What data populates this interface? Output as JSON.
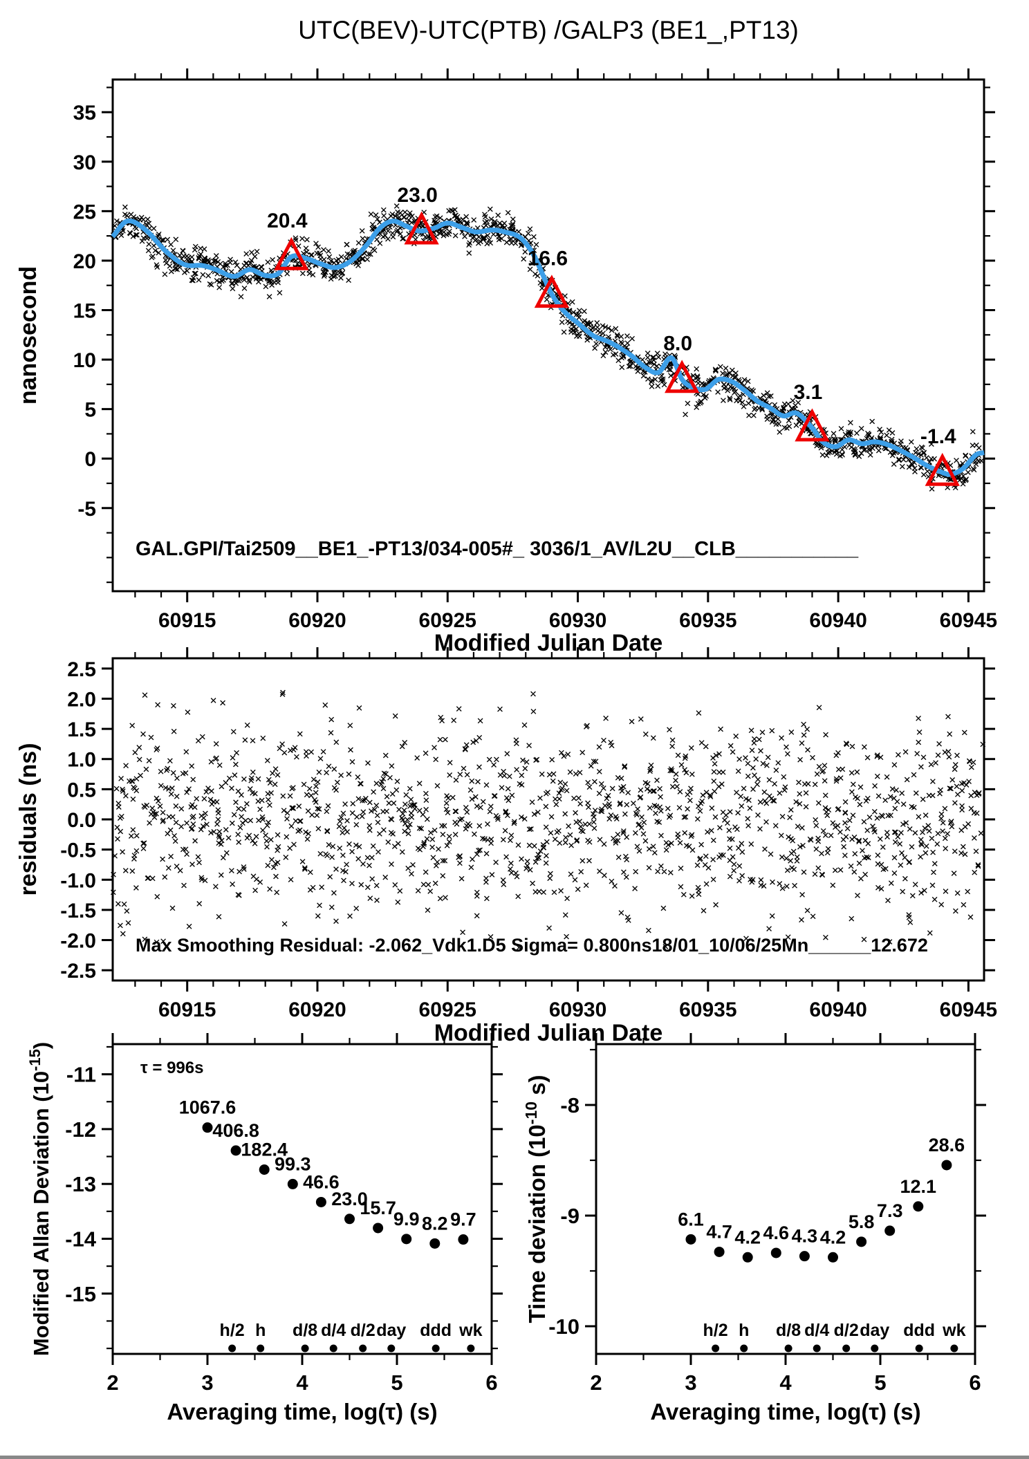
{
  "figure": {
    "background": "#ffffff"
  },
  "colors": {
    "scatter": "#000000",
    "trend": "#3d9fe8",
    "highlight": "#ee0000"
  },
  "chart_data": [
    {
      "id": "time-difference",
      "type": "scatter",
      "title": "UTC(BEV)-UTC(PTB)  /GALP3  (BE1_,PT13)",
      "xlabel": "Modified Julian Date",
      "ylabel": "nanosecond",
      "xlim": [
        60912.14,
        60945.6
      ],
      "ylim": [
        -13.4,
        38.3
      ],
      "xticks": [
        60915,
        60920,
        60925,
        60930,
        60935,
        60940,
        60945
      ],
      "yticks": [
        -5,
        0,
        5,
        10,
        15,
        20,
        25,
        30,
        35
      ],
      "annotation": "GAL.GPI/Tai2509__BE1_-PT13/034-005#_  3036/1_AV/L2U__CLB___________",
      "scatter_marker": "x",
      "scatter_style": {
        "n": 1400,
        "sigma_ns": 0.82,
        "seed": 11
      },
      "smoothed_line": [
        [
          60912.1,
          22.3
        ],
        [
          60912.7,
          24.0
        ],
        [
          60913.4,
          23.1
        ],
        [
          60914.2,
          20.9
        ],
        [
          60914.9,
          19.6
        ],
        [
          60915.6,
          19.5
        ],
        [
          60916.1,
          19.1
        ],
        [
          60916.8,
          18.4
        ],
        [
          60917.4,
          19.1
        ],
        [
          60918.0,
          18.5
        ],
        [
          60918.5,
          18.7
        ],
        [
          60919.0,
          20.4
        ],
        [
          60919.6,
          20.2
        ],
        [
          60920.1,
          19.7
        ],
        [
          60920.7,
          19.3
        ],
        [
          60921.3,
          20.0
        ],
        [
          60921.9,
          21.6
        ],
        [
          60922.4,
          23.3
        ],
        [
          60922.9,
          24.0
        ],
        [
          60923.4,
          23.5
        ],
        [
          60923.9,
          23.0
        ],
        [
          60924.5,
          23.3
        ],
        [
          60925.0,
          23.8
        ],
        [
          60925.6,
          23.3
        ],
        [
          60926.1,
          22.9
        ],
        [
          60926.7,
          23.1
        ],
        [
          60927.2,
          22.9
        ],
        [
          60927.8,
          22.3
        ],
        [
          60928.3,
          20.6
        ],
        [
          60928.7,
          18.3
        ],
        [
          60929.0,
          16.6
        ],
        [
          60929.5,
          14.8
        ],
        [
          60930.0,
          13.7
        ],
        [
          60930.6,
          12.4
        ],
        [
          60931.1,
          11.9
        ],
        [
          60931.6,
          11.2
        ],
        [
          60932.1,
          10.3
        ],
        [
          60932.6,
          9.2
        ],
        [
          60933.1,
          8.7
        ],
        [
          60933.6,
          10.2
        ],
        [
          60934.0,
          8.0
        ],
        [
          60934.4,
          7.2
        ],
        [
          60934.9,
          7.0
        ],
        [
          60935.4,
          8.0
        ],
        [
          60935.9,
          7.8
        ],
        [
          60936.4,
          6.9
        ],
        [
          60936.9,
          5.8
        ],
        [
          60937.4,
          5.1
        ],
        [
          60937.9,
          4.3
        ],
        [
          60938.4,
          4.6
        ],
        [
          60939.0,
          3.1
        ],
        [
          60939.4,
          1.7
        ],
        [
          60939.9,
          1.2
        ],
        [
          60940.4,
          1.9
        ],
        [
          60940.9,
          1.5
        ],
        [
          60941.4,
          1.7
        ],
        [
          60941.9,
          1.4
        ],
        [
          60942.4,
          0.8
        ],
        [
          60942.9,
          0.1
        ],
        [
          60943.4,
          -0.7
        ],
        [
          60943.9,
          -1.3
        ],
        [
          60944.3,
          -1.6
        ],
        [
          60944.8,
          -1.0
        ],
        [
          60945.3,
          0.4
        ],
        [
          60945.6,
          0.6
        ]
      ],
      "calibration_points": {
        "marker": "triangle",
        "mjd": [
          60919,
          60924,
          60929,
          60934,
          60939,
          60944
        ],
        "value": [
          20.4,
          23.0,
          16.6,
          8.0,
          3.1,
          -1.4
        ],
        "labels": [
          "20.4",
          "23.0",
          "16.6",
          "8.0",
          "3.1",
          "-1.4"
        ]
      }
    },
    {
      "id": "residuals",
      "type": "scatter",
      "xlabel": "Modified Julian Date",
      "ylabel": "residuals (ns)",
      "xlim": [
        60912.14,
        60945.6
      ],
      "ylim": [
        -2.67,
        2.67
      ],
      "xticks": [
        60915,
        60920,
        60925,
        60930,
        60935,
        60940,
        60945
      ],
      "yticks": [
        -2.5,
        -2.0,
        -1.5,
        -1.0,
        -0.5,
        0.0,
        0.5,
        1.0,
        1.5,
        2.0,
        2.5
      ],
      "annotation": "Max Smoothing Residual: -2.062_Vdk1.D5  Sigma= 0.800ns18/01_10/06/25Mn______12.672",
      "scatter_marker": "x",
      "scatter_style": {
        "n": 1400,
        "sigma_ns": 0.8,
        "clip_ns": 2.15,
        "seed": 77
      }
    },
    {
      "id": "modified-allan-deviation",
      "type": "scatter",
      "xlabel": "Averaging time, log(τ) (s)",
      "ylabel_parts": {
        "prefix": "Modified Allan Deviation (10",
        "sup": "-15",
        "suffix": ")"
      },
      "xlim": [
        2,
        6
      ],
      "ylim": [
        -16.1,
        -10.45
      ],
      "xticks": [
        2,
        3,
        4,
        5,
        6
      ],
      "yticks": [
        -15,
        -14,
        -13,
        -12,
        -11
      ],
      "tau_annotation": "τ = 996s",
      "unit_exponent": -15,
      "log_tau": [
        3.0,
        3.3,
        3.6,
        3.9,
        4.2,
        4.5,
        4.8,
        5.1,
        5.4,
        5.7
      ],
      "values": [
        1067.6,
        406.8,
        182.4,
        99.3,
        46.6,
        23.0,
        15.7,
        9.9,
        8.2,
        9.7
      ],
      "value_labels": [
        "1067.6",
        "406.8",
        "182.4",
        "99.3",
        "46.6",
        "23.0",
        "15.7",
        "9.9",
        "8.2",
        "9.7"
      ],
      "duration_markers": {
        "labels": [
          "h/2",
          "h",
          "d/8",
          "d/4",
          "d/2",
          "day",
          "ddd",
          "wk"
        ],
        "log_tau": [
          3.26,
          3.56,
          4.03,
          4.33,
          4.64,
          4.94,
          5.41,
          5.78
        ]
      }
    },
    {
      "id": "time-deviation",
      "type": "scatter",
      "xlabel": "Averaging time, log(τ) (s)",
      "ylabel_parts": {
        "prefix": "Time deviation (10",
        "sup": "-10",
        "suffix": " s)"
      },
      "xlim": [
        2,
        6
      ],
      "ylim": [
        -10.25,
        -7.45
      ],
      "xticks": [
        2,
        3,
        4,
        5,
        6
      ],
      "yticks": [
        -10,
        -9,
        -8
      ],
      "unit_exponent": -10,
      "log_tau": [
        3.0,
        3.3,
        3.6,
        3.9,
        4.2,
        4.5,
        4.8,
        5.1,
        5.4,
        5.7
      ],
      "values": [
        6.1,
        4.7,
        4.2,
        4.6,
        4.3,
        4.2,
        5.8,
        7.3,
        12.1,
        28.6
      ],
      "value_labels": [
        "6.1",
        "4.7",
        "4.2",
        "4.6",
        "4.3",
        "4.2",
        "5.8",
        "7.3",
        "12.1",
        "28.6"
      ],
      "duration_markers": {
        "labels": [
          "h/2",
          "h",
          "d/8",
          "d/4",
          "d/2",
          "day",
          "ddd",
          "wk"
        ],
        "log_tau": [
          3.26,
          3.56,
          4.03,
          4.33,
          4.64,
          4.94,
          5.41,
          5.78
        ]
      }
    }
  ]
}
